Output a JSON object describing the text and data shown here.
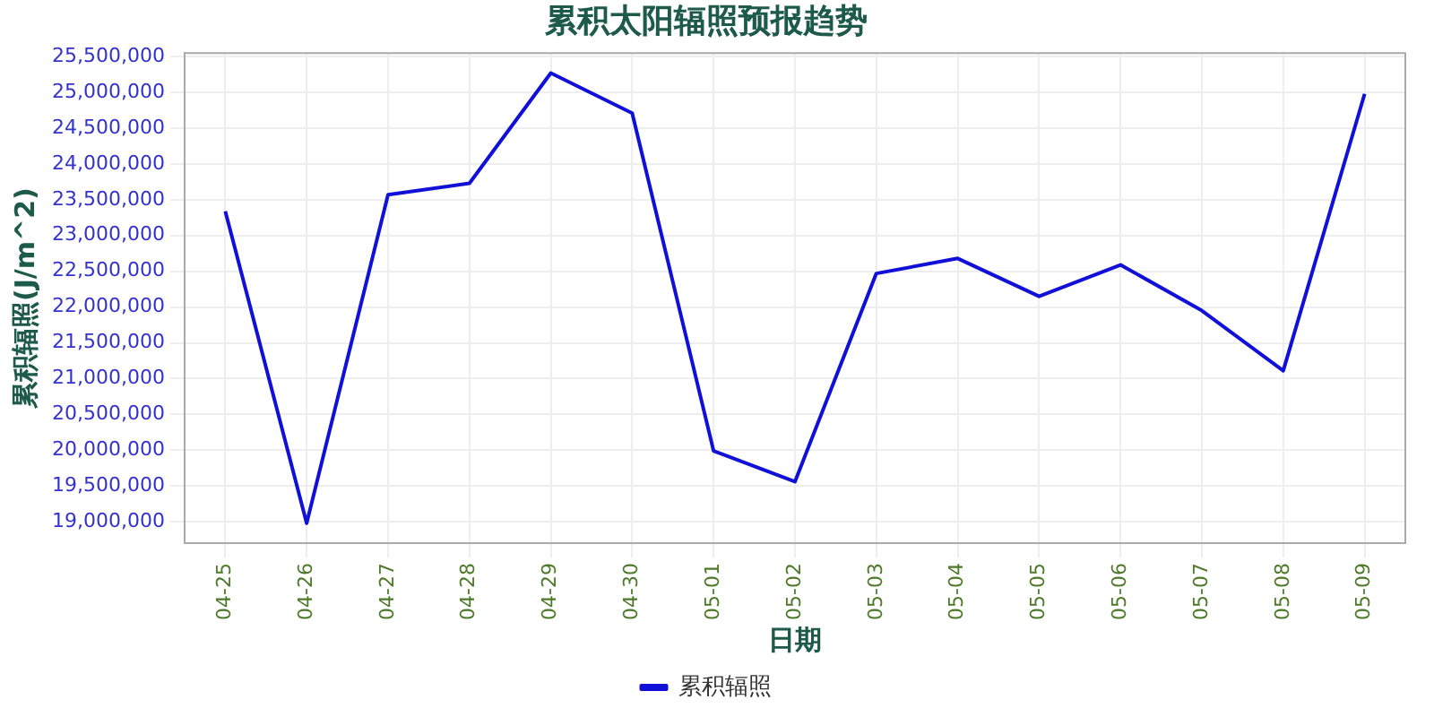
{
  "chart_data": {
    "type": "line",
    "title": "累积太阳辐照预报趋势",
    "xlabel": "日期",
    "ylabel": "累积辐照(J/m^2)",
    "categories": [
      "04-25",
      "04-26",
      "04-27",
      "04-28",
      "04-29",
      "04-30",
      "05-01",
      "05-02",
      "05-03",
      "05-04",
      "05-05",
      "05-06",
      "05-07",
      "05-08",
      "05-09"
    ],
    "series": [
      {
        "name": "累积辐照",
        "color": "#1010d8",
        "values": [
          23340000,
          18980000,
          23570000,
          23730000,
          25270000,
          24710000,
          19990000,
          19560000,
          22470000,
          22680000,
          22150000,
          22590000,
          21950000,
          21110000,
          24980000
        ]
      }
    ],
    "ylim": [
      18700000,
      25550000
    ],
    "yticks": [
      {
        "value": 19000000,
        "label": "19,000,000"
      },
      {
        "value": 19500000,
        "label": "19,500,000"
      },
      {
        "value": 20000000,
        "label": "20,000,000"
      },
      {
        "value": 20500000,
        "label": "20,500,000"
      },
      {
        "value": 21000000,
        "label": "21,000,000"
      },
      {
        "value": 21500000,
        "label": "21,500,000"
      },
      {
        "value": 22000000,
        "label": "22,000,000"
      },
      {
        "value": 22500000,
        "label": "22,500,000"
      },
      {
        "value": 23000000,
        "label": "23,000,000"
      },
      {
        "value": 23500000,
        "label": "23,500,000"
      },
      {
        "value": 24000000,
        "label": "24,000,000"
      },
      {
        "value": 24500000,
        "label": "24,500,000"
      },
      {
        "value": 25000000,
        "label": "25,000,000"
      },
      {
        "value": 25500000,
        "label": "25,500,000"
      }
    ],
    "grid": true,
    "legend": "bottom",
    "marker": "none",
    "line_style": "solid"
  }
}
